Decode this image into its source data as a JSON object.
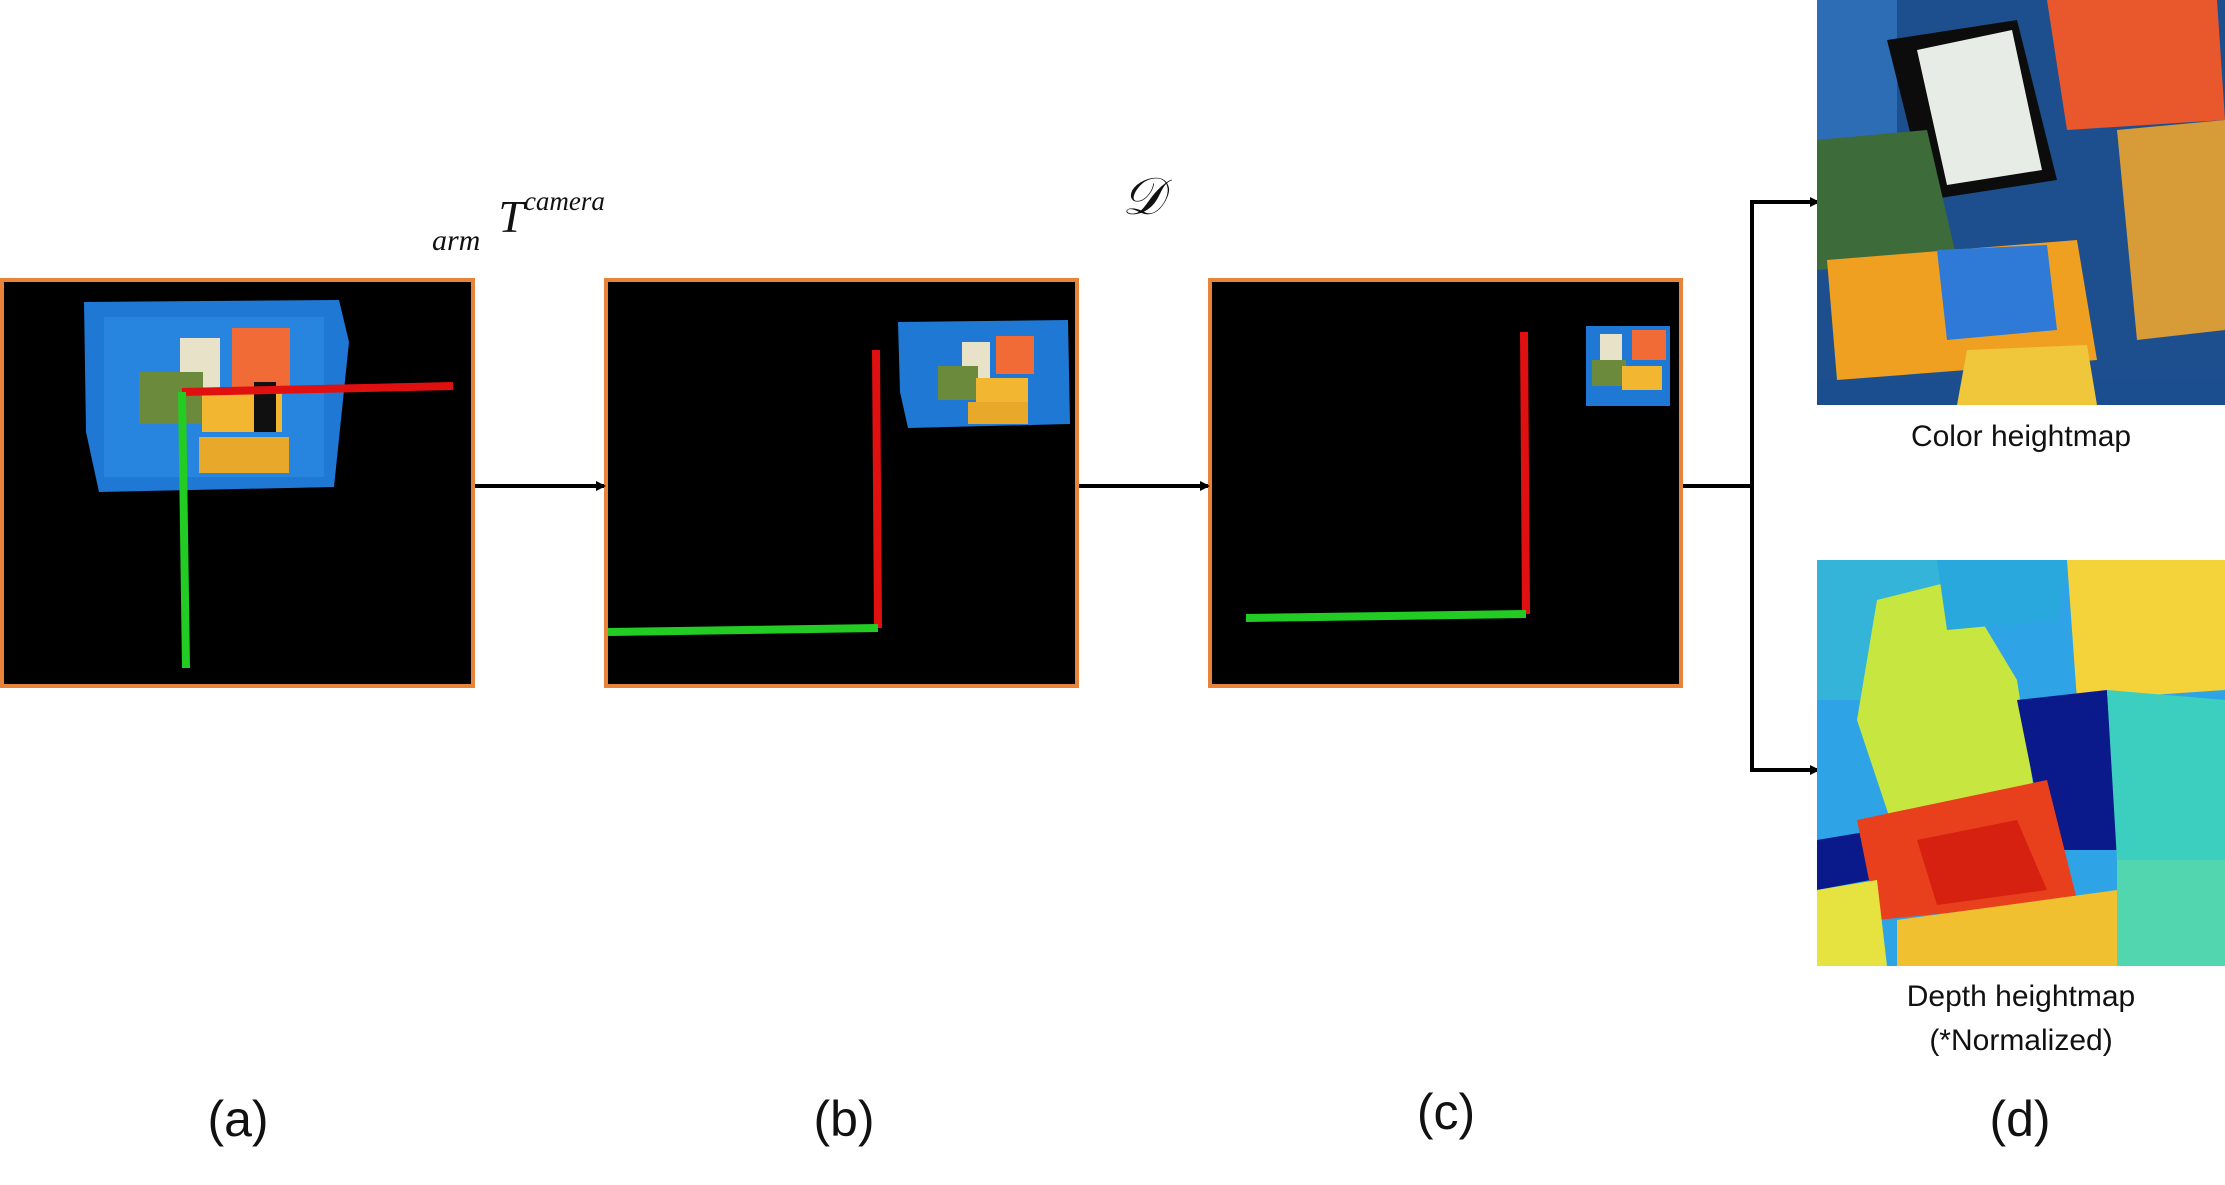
{
  "transform_label": {
    "sub": "arm",
    "main": "T",
    "sup": "camera"
  },
  "projection_label": "𝒟",
  "panels": [
    {
      "id": "a",
      "label": "(a)"
    },
    {
      "id": "b",
      "label": "(b)"
    },
    {
      "id": "c",
      "label": "(c)"
    },
    {
      "id": "d",
      "label": "(d)"
    }
  ],
  "heightmaps": {
    "color_caption": "Color heightmap",
    "depth_caption_line1": "Depth heightmap",
    "depth_caption_line2": "(*Normalized)"
  },
  "colors": {
    "panel_border": "#e8833a",
    "x_axis": "#e01010",
    "y_axis": "#22cc22",
    "tray": "#1f78d4"
  }
}
